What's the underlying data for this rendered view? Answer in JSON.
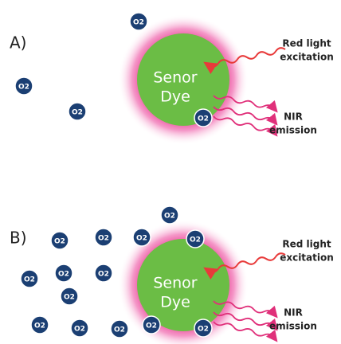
{
  "panels": [
    {
      "label": "A)",
      "dye": [
        "Senor",
        "Dye"
      ],
      "excitation": [
        "Red light",
        "excitation"
      ],
      "emission": [
        "NIR",
        "emission"
      ],
      "oxygen": [
        "O2",
        "O2",
        "O2",
        "O2"
      ]
    },
    {
      "label": "B)",
      "dye": [
        "Senor",
        "Dye"
      ],
      "excitation": [
        "Red light",
        "excitation"
      ],
      "emission": [
        "NIR",
        "emission"
      ],
      "oxygen": [
        "O2",
        "O2",
        "O2",
        "O2",
        "O2",
        "O2",
        "O2",
        "O2",
        "O2",
        "O2",
        "O2",
        "O2",
        "O2",
        "O2"
      ]
    }
  ]
}
